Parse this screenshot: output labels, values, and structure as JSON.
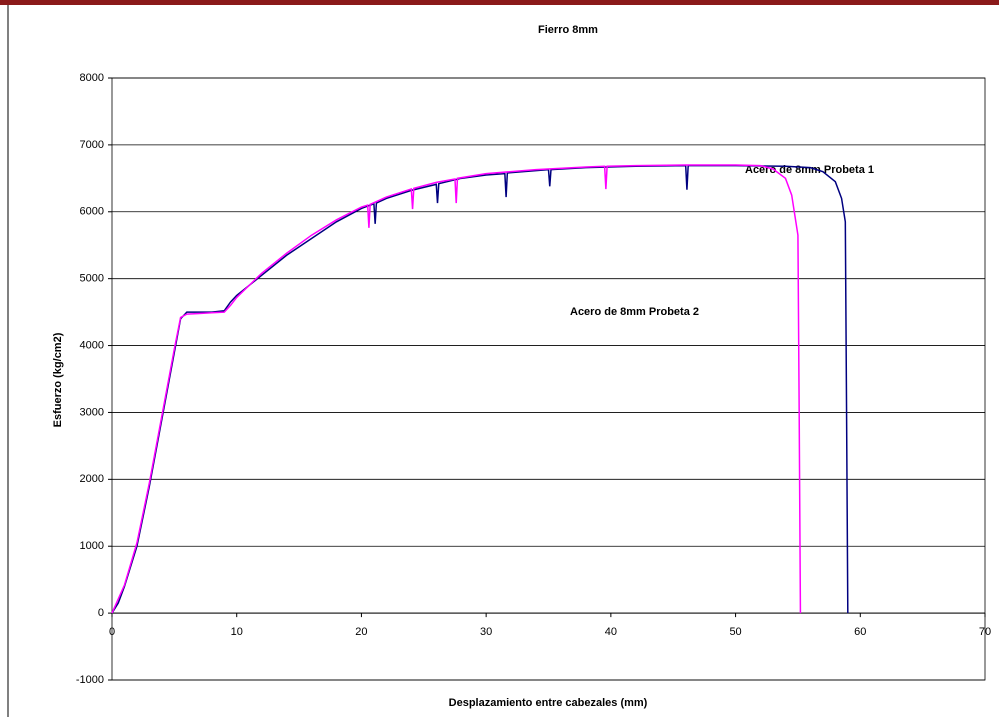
{
  "chart_data": {
    "type": "line",
    "title": "Fierro 8mm",
    "x_label": "Desplazamiento entre cabezales (mm)",
    "y_label": "Esfuerzo (kg/cm2)",
    "annotations": [
      "Acero de 8mm Probeta 1",
      "Acero de 8mm Probeta 2"
    ],
    "xlim": [
      0,
      70
    ],
    "xticks": [
      0,
      10,
      20,
      30,
      40,
      50,
      60,
      70
    ],
    "ylim": [
      -1000,
      8000
    ],
    "yticks": [
      -1000,
      0,
      1000,
      2000,
      3000,
      4000,
      5000,
      6000,
      7000,
      8000
    ],
    "grid": true,
    "series": [
      {
        "name": "Acero de 8mm Probeta 1",
        "color": "#000080",
        "x": [
          0,
          0.5,
          1,
          2,
          3,
          4,
          5,
          5.5,
          6,
          7,
          8,
          9,
          9.5,
          10,
          12,
          14,
          16,
          18,
          20,
          21,
          21.1,
          21.2,
          22,
          24,
          26,
          26.1,
          26.2,
          28,
          30,
          31.5,
          31.6,
          31.7,
          35,
          35.1,
          35.2,
          38,
          42,
          46,
          46.1,
          46.2,
          50,
          54,
          56,
          57,
          58,
          58.5,
          58.8,
          58.9,
          59
        ],
        "values": [
          0,
          150,
          400,
          1000,
          1900,
          2900,
          3900,
          4400,
          4500,
          4500,
          4500,
          4520,
          4650,
          4750,
          5050,
          5350,
          5600,
          5850,
          6050,
          6120,
          5820,
          6130,
          6200,
          6320,
          6410,
          6130,
          6420,
          6500,
          6550,
          6570,
          6220,
          6580,
          6630,
          6380,
          6630,
          6660,
          6680,
          6690,
          6330,
          6690,
          6690,
          6680,
          6660,
          6600,
          6450,
          6200,
          5850,
          3000,
          0
        ]
      },
      {
        "name": "Acero de 8mm Probeta 2",
        "color": "#ff00ff",
        "x": [
          0,
          1,
          2,
          3,
          4,
          5,
          5.5,
          6,
          7,
          8,
          9,
          9.5,
          10,
          12,
          14,
          16,
          18,
          20,
          20.5,
          20.6,
          20.7,
          22,
          24,
          24.1,
          24.2,
          26,
          27.5,
          27.6,
          27.7,
          30,
          34,
          38,
          39.5,
          39.6,
          39.7,
          42,
          46,
          50,
          52,
          53,
          54,
          54.5,
          55,
          55.1,
          55.2
        ],
        "values": [
          0,
          420,
          1050,
          1950,
          2950,
          3950,
          4420,
          4470,
          4480,
          4490,
          4500,
          4600,
          4720,
          5080,
          5380,
          5650,
          5880,
          6070,
          6100,
          5760,
          6110,
          6220,
          6340,
          6040,
          6350,
          6440,
          6490,
          6130,
          6500,
          6570,
          6630,
          6670,
          6680,
          6340,
          6680,
          6690,
          6700,
          6700,
          6690,
          6640,
          6500,
          6250,
          5650,
          3000,
          0
        ]
      }
    ]
  }
}
